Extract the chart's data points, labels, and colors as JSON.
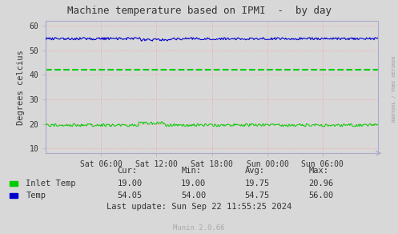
{
  "title": "Machine temperature based on IPMI  -  by day",
  "ylabel": "Degrees celcius",
  "background_color": "#d8d8d8",
  "plot_bg_color": "#d8d8d8",
  "ylim": [
    8,
    62
  ],
  "yticks": [
    10,
    20,
    30,
    40,
    50,
    60
  ],
  "xtick_labels": [
    "Sat 06:00",
    "Sat 12:00",
    "Sat 18:00",
    "Sun 00:00",
    "Sun 06:00"
  ],
  "xtick_positions": [
    0.167,
    0.333,
    0.5,
    0.667,
    0.833
  ],
  "inlet_temp_mean": 19.5,
  "inlet_temp_noise": 0.6,
  "temp_mean": 54.8,
  "temp_noise": 0.5,
  "inlet_color": "#00cc00",
  "temp_color": "#0000cc",
  "dashed_line_value": 42,
  "dashed_line_color": "#00cc00",
  "hgrid_color": "#ff9999",
  "vgrid_color": "#ff9999",
  "spine_color": "#aaaacc",
  "right_label": "RRDTOOL / TOBI OETIKER",
  "footer_munin": "Munin 2.0.66",
  "legend_items": [
    {
      "label": "Inlet Temp",
      "color": "#00cc00"
    },
    {
      "label": "Temp",
      "color": "#0000cc"
    }
  ],
  "stats_headers": [
    "Cur:",
    "Min:",
    "Avg:",
    "Max:"
  ],
  "stats_inlet": [
    "19.00",
    "19.00",
    "19.75",
    "20.96"
  ],
  "stats_temp": [
    "54.05",
    "54.00",
    "54.75",
    "56.00"
  ],
  "last_update": "Last update: Sun Sep 22 11:55:25 2024",
  "n_points": 400,
  "text_color": "#333333",
  "footer_color": "#aaaaaa"
}
